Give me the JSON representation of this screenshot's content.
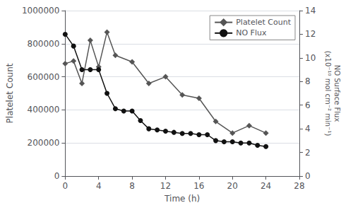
{
  "chart_data": {
    "type": "line",
    "xlabel": "Time (h)",
    "ylabel": "Platelet Count",
    "y2label": "NO Surface Flux\n(x10⁻¹⁰ mol cm⁻² min⁻¹)",
    "series": [
      {
        "name": "Platelet Count",
        "color": "#555555",
        "marker": "diamond",
        "x": [
          0,
          1,
          2,
          3,
          4,
          5,
          6,
          8,
          10,
          12,
          14,
          16,
          18,
          20,
          22,
          24
        ],
        "values": [
          680000,
          695000,
          560000,
          820000,
          660000,
          870000,
          730000,
          690000,
          560000,
          600000,
          490000,
          470000,
          330000,
          260000,
          305000,
          260000
        ]
      },
      {
        "name": "NO Flux",
        "color": "#111111",
        "marker": "circle",
        "axis": "y2",
        "x": [
          0,
          1,
          2,
          3,
          4,
          5,
          6,
          7,
          8,
          9,
          10,
          11,
          12,
          13,
          14,
          15,
          16,
          17,
          18,
          19,
          20,
          21,
          22,
          23,
          24
        ],
        "values": [
          12.0,
          11.0,
          9.0,
          9.0,
          9.0,
          7.0,
          5.7,
          5.5,
          5.5,
          4.7,
          4.0,
          3.9,
          3.8,
          3.7,
          3.6,
          3.6,
          3.5,
          3.5,
          3.0,
          2.9,
          2.9,
          2.8,
          2.8,
          2.6,
          2.5
        ]
      }
    ],
    "xlim": [
      0,
      28
    ],
    "xticks": [
      0,
      4,
      8,
      12,
      16,
      20,
      24,
      28
    ],
    "ylim": [
      0,
      1000000
    ],
    "yticks": [
      0,
      200000,
      400000,
      600000,
      800000,
      1000000
    ],
    "y2lim": [
      0,
      14
    ],
    "y2ticks": [
      0,
      2,
      4,
      6,
      8,
      10,
      12,
      14
    ],
    "grid": true,
    "legend": "upper right"
  }
}
